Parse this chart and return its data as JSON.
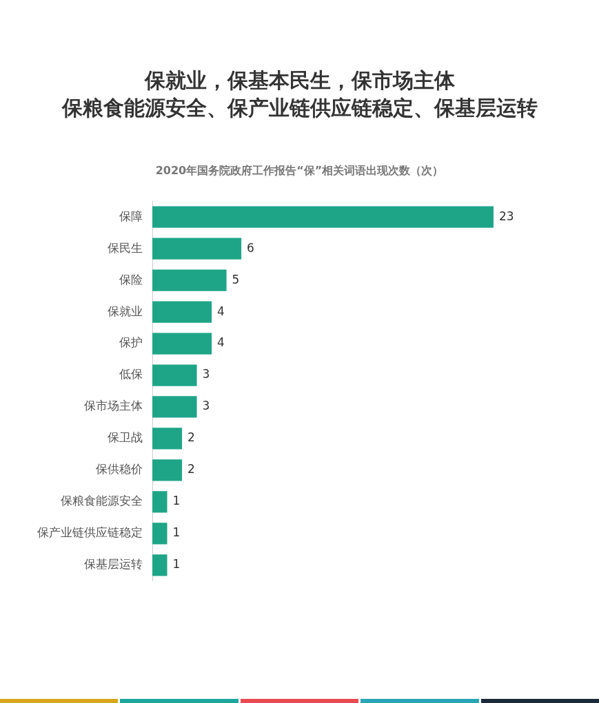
{
  "chart_data": {
    "type": "bar",
    "orientation": "horizontal",
    "title": "保就业，保基本民生，保市场主体",
    "subtitle": "保粮食能源安全、保产业链供应链稳定、保基层运转",
    "annotations": [
      "2020年国务院政府工作报告“保”相关词语出现次数（次）"
    ],
    "categories": [
      "保障",
      "保民生",
      "保险",
      "保就业",
      "保护",
      "低保",
      "保市场主体",
      "保卫战",
      "保供稳价",
      "保粮食能源安全",
      "保产业链供应链稳定",
      "保基层运转"
    ],
    "values": [
      23,
      6,
      5,
      4,
      4,
      3,
      3,
      2,
      2,
      1,
      1,
      1
    ],
    "color": "#1ea587",
    "data_labels": true,
    "grid": false,
    "legend": false
  }
}
